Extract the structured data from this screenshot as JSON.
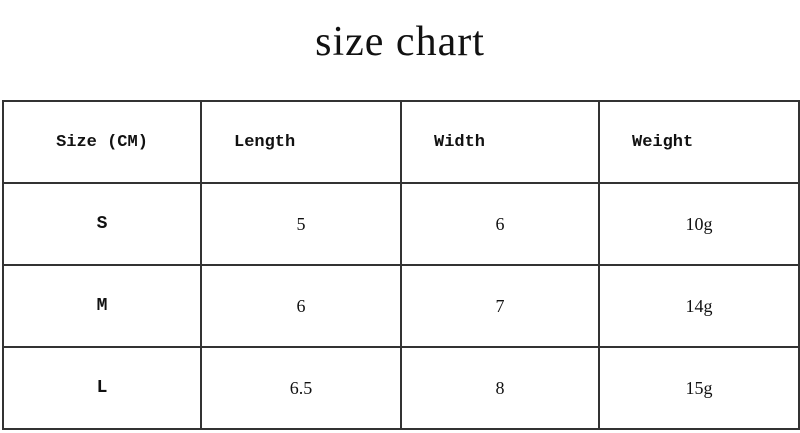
{
  "title": "size chart",
  "table": {
    "headers": [
      "Size (CM)",
      "Length",
      "Width",
      "Weight"
    ],
    "rows": [
      [
        "S",
        "5",
        "6",
        "10g"
      ],
      [
        "M",
        "6",
        "7",
        "14g"
      ],
      [
        "L",
        "6.5",
        "8",
        "15g"
      ]
    ]
  }
}
